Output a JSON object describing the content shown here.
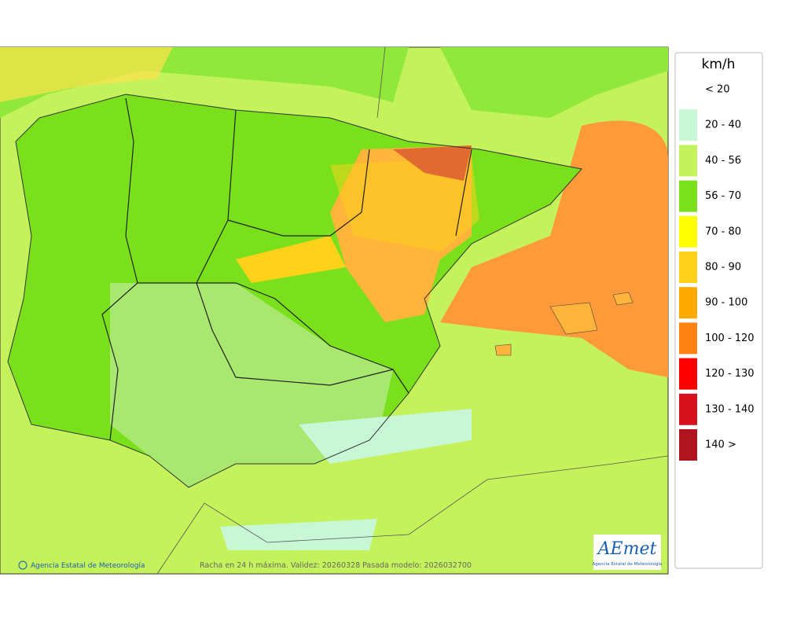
{
  "legend": {
    "title": "km/h",
    "items": [
      {
        "label": "< 20",
        "color": "#ffffff"
      },
      {
        "label": "20 - 40",
        "color": "#c8f7d6"
      },
      {
        "label": "40 - 56",
        "color": "#c3f25a"
      },
      {
        "label": "56 - 70",
        "color": "#7ae01c"
      },
      {
        "label": "70 - 80",
        "color": "#ffff00"
      },
      {
        "label": "80 - 90",
        "color": "#ffd21a"
      },
      {
        "label": "90 - 100",
        "color": "#ffaa00"
      },
      {
        "label": "100 - 120",
        "color": "#ff8212"
      },
      {
        "label": "120 - 130",
        "color": "#ff0000"
      },
      {
        "label": "130 - 140",
        "color": "#d8121c"
      },
      {
        "label": "140 >",
        "color": "#b0141e"
      }
    ]
  },
  "map": {
    "credit": "Agencia Estatal de Meteorología",
    "caption": "Racha en 24 h máxima. Validez: 20260328 Pasada modelo: 2026032700"
  },
  "logo": {
    "text": "AEmet",
    "subtitle": "Agencia Estatal de Meteorología"
  }
}
